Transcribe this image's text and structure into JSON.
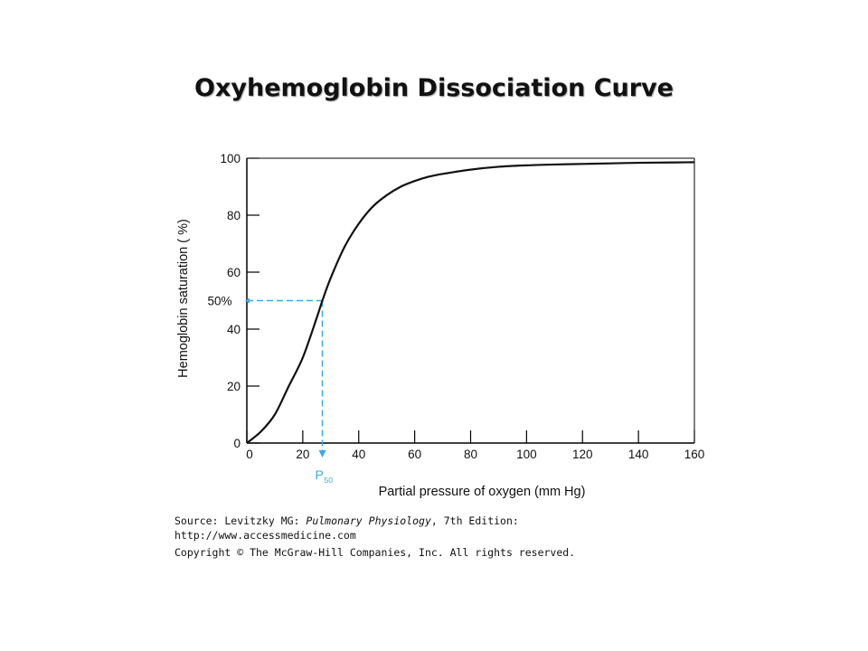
{
  "slide_title": "Oxyhemoglobin Dissociation Curve",
  "colors": {
    "curve": "#111111",
    "axis": "#000000",
    "guide": "#38a9e8"
  },
  "chart_data": {
    "type": "line",
    "xlabel": "Partial pressure of oxygen (mm Hg)",
    "ylabel": "Hemoglobin saturation ( %)",
    "xlim": [
      0,
      160
    ],
    "ylim": [
      0,
      100
    ],
    "x_ticks": [
      0,
      20,
      40,
      60,
      80,
      100,
      120,
      140,
      160
    ],
    "y_ticks": [
      0,
      20,
      40,
      60,
      80,
      100
    ],
    "grid": false,
    "series": [
      {
        "x": [
          0,
          5,
          10,
          15,
          20,
          25,
          27,
          30,
          35,
          40,
          45,
          50,
          55,
          60,
          65,
          70,
          80,
          90,
          100,
          110,
          120,
          130,
          140,
          150,
          160
        ],
        "y": [
          0,
          4,
          10,
          20,
          30,
          44,
          50,
          58,
          69,
          77,
          83,
          87,
          90,
          92,
          93.5,
          94.5,
          96,
          97,
          97.5,
          97.8,
          98,
          98.2,
          98.4,
          98.5,
          98.6
        ]
      }
    ],
    "annotations": {
      "p50_x": 27,
      "p50_y": 50,
      "y_marker_label": "50%",
      "x_marker_label": "P",
      "x_marker_sub": "50"
    }
  },
  "source": {
    "line1_prefix": "Source: Levitzky MG: ",
    "line1_italic": "Pulmonary Physiology",
    "line1_suffix": ", 7th Edition:",
    "line2": "http://www.accessmedicine.com",
    "line3": "Copyright © The McGraw-Hill Companies, Inc. All rights reserved."
  }
}
